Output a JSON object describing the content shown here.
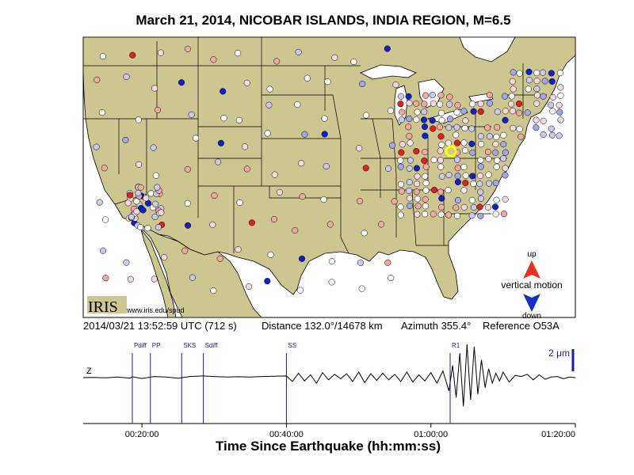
{
  "title": "March 21, 2014, NICOBAR ISLANDS, INDIA REGION, M=6.5",
  "info": {
    "datetime": "2014/03/21 13:52:59 UTC (712 s)",
    "distance": "Distance 132.0°/14678 km",
    "azimuth": "Azimuth 355.4°",
    "reference": "Reference O53A"
  },
  "logo": {
    "text": "IRIS",
    "url": "www.iris.edu/spud"
  },
  "legend": {
    "up": "up",
    "label": "vertical motion",
    "down": "down",
    "up_color": "#e83020",
    "down_color": "#1030c8"
  },
  "station_colors": {
    "strong_up": "#e0201c",
    "up": "#f0a8a0",
    "weak_up": "#f8d8e0",
    "neutral": "#ffffff",
    "weak_down": "#c8c8f0",
    "down": "#a0a8e8",
    "strong_down": "#1020c8"
  },
  "map_colors": {
    "land": "#cdc690",
    "water": "#ffffff",
    "border": "#000000"
  },
  "reference_station_color": "#ffff00",
  "chart_data": {
    "type": "line",
    "title": "March 21, 2014, NICOBAR ISLANDS, INDIA REGION, M=6.5",
    "xlabel": "Time Since Earthquake (hh:mm:ss)",
    "ylabel": "",
    "x_tick_labels": [
      "00:20:00",
      "00:40:00",
      "01:00:00",
      "01:20:00"
    ],
    "x_ticks_seconds": [
      1200,
      2400,
      3600,
      4800
    ],
    "xlim_seconds": [
      712,
      4800
    ],
    "channel": "Z",
    "scale_label": "2 μm",
    "scale_amplitude_um": 2,
    "phases": [
      {
        "name": "Pdiff",
        "t": 1120
      },
      {
        "name": "PP",
        "t": 1270
      },
      {
        "name": "SKS",
        "t": 1530
      },
      {
        "name": "Sdiff",
        "t": 1710
      },
      {
        "name": "SS",
        "t": 2400
      },
      {
        "name": "R1",
        "t": 3760
      }
    ],
    "trace_color": "#000000",
    "phase_color": "#1a1aa8",
    "series": [
      {
        "t": [
          712,
          800,
          900,
          1000,
          1100,
          1120,
          1200,
          1300,
          1400,
          1500,
          1600,
          1700,
          1800,
          1900,
          2000,
          2100,
          2200,
          2300,
          2400,
          2450,
          2500,
          2550,
          2600,
          2650,
          2700,
          2750,
          2800,
          2850,
          2900,
          2950,
          3000,
          3050,
          3100,
          3150,
          3200,
          3250,
          3300,
          3350,
          3400,
          3450,
          3500,
          3550,
          3600,
          3650,
          3700,
          3750,
          3780,
          3810,
          3840,
          3870,
          3900,
          3930,
          3960,
          3990,
          4020,
          4050,
          4080,
          4110,
          4140,
          4170,
          4200,
          4250,
          4300,
          4350,
          4400,
          4450,
          4500,
          4550,
          4600,
          4650,
          4700,
          4750,
          4800
        ],
        "amplitude_um": [
          0.0,
          0.02,
          -0.02,
          0.05,
          -0.05,
          0.08,
          -0.08,
          0.1,
          0.05,
          -0.05,
          0.1,
          0.15,
          0.1,
          0.05,
          0.08,
          0.05,
          0.1,
          0.12,
          0.15,
          -0.35,
          0.4,
          -0.3,
          0.25,
          -0.5,
          0.45,
          -0.2,
          0.3,
          -0.1,
          0.35,
          -0.35,
          0.5,
          -0.45,
          0.35,
          -0.25,
          0.4,
          -0.2,
          0.3,
          -0.35,
          0.5,
          -0.4,
          0.25,
          -0.3,
          0.45,
          -0.5,
          0.6,
          -1.2,
          1.1,
          -1.8,
          2.2,
          -2.6,
          3.0,
          -2.0,
          2.8,
          -1.5,
          1.6,
          -0.9,
          0.8,
          -0.5,
          0.4,
          -0.3,
          0.5,
          -0.4,
          0.2,
          0.1,
          0.3,
          -0.2,
          0.25,
          -0.15,
          0.05,
          0.1,
          -0.1,
          0.05,
          0.0
        ]
      }
    ]
  }
}
